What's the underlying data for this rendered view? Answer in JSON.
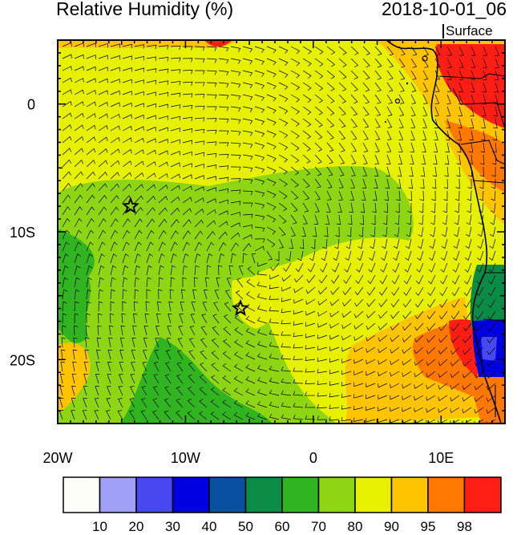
{
  "title": {
    "left": "Relative Humidity (%)",
    "right": "2018-10-01_06",
    "sub": "Surface"
  },
  "axes": {
    "x_ticks": [
      {
        "lon": -20,
        "label": "20W"
      },
      {
        "lon": -10,
        "label": "10W"
      },
      {
        "lon": 0,
        "label": "0"
      },
      {
        "lon": 10,
        "label": "10E"
      }
    ],
    "y_ticks": [
      {
        "lat": 0,
        "label": "0"
      },
      {
        "lat": -10,
        "label": "10S"
      },
      {
        "lat": -20,
        "label": "20S"
      }
    ],
    "lon_range": [
      -20,
      15
    ],
    "lat_range": [
      -25,
      5
    ]
  },
  "colorbar": {
    "colors": [
      "#fdfdf8",
      "#a0a0f8",
      "#4848f0",
      "#0000e0",
      "#0a50a0",
      "#0a8c46",
      "#30b420",
      "#8ed614",
      "#e6f000",
      "#ffc400",
      "#ff7800",
      "#ff1e14"
    ],
    "labels": [
      "10",
      "20",
      "30",
      "40",
      "50",
      "60",
      "70",
      "80",
      "90",
      "95",
      "98"
    ]
  },
  "stations": [
    {
      "lon": -14.3,
      "lat": -8.0
    },
    {
      "lon": -5.7,
      "lat": -16.0
    }
  ]
}
